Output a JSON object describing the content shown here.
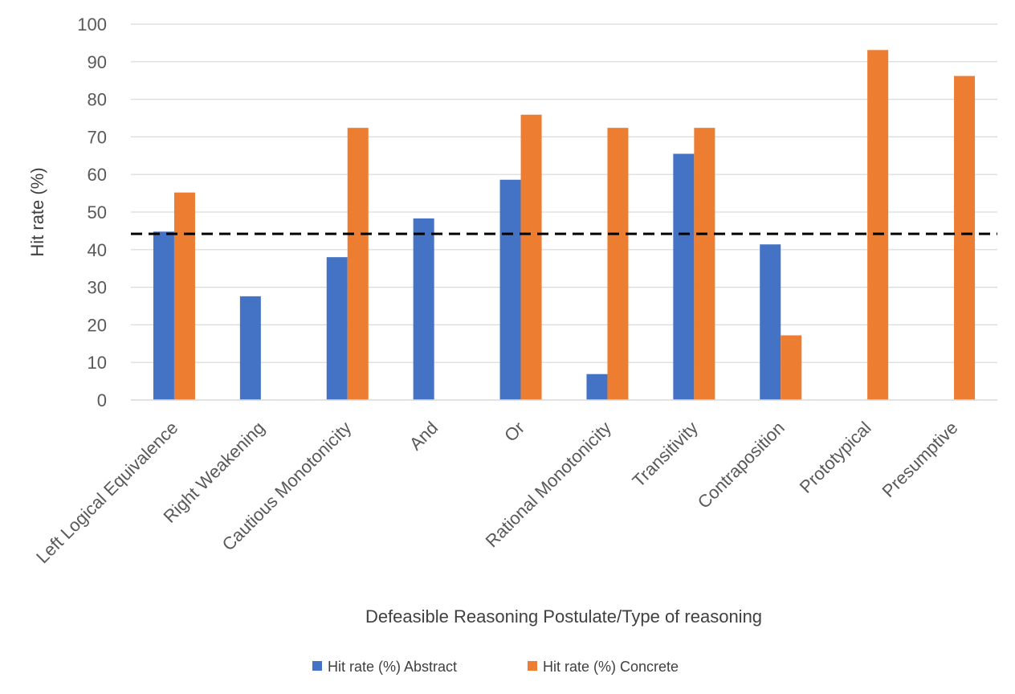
{
  "chart_data": {
    "type": "bar",
    "title": "",
    "xlabel": "Defeasible Reasoning Postulate/Type of reasoning",
    "ylabel": "Hit rate (%)",
    "ylim": [
      0,
      100
    ],
    "yticks": [
      0,
      10,
      20,
      30,
      40,
      50,
      60,
      70,
      80,
      90,
      100
    ],
    "grid": true,
    "legend_position": "bottom",
    "reference_line": {
      "y": 44.2,
      "style": "dashed",
      "color": "#000000"
    },
    "categories": [
      "Left Logical Equivalence",
      "Right Weakening",
      "Cautious Monotonicity",
      "And",
      "Or",
      "Rational Monotonicity",
      "Transitivity",
      "Contraposition",
      "Prototypical",
      "Presumptive"
    ],
    "series": [
      {
        "name": "Hit rate (%) Abstract",
        "color": "#4472C4",
        "values": [
          44.8,
          27.6,
          38.0,
          48.3,
          58.6,
          6.9,
          65.5,
          41.4,
          null,
          null
        ]
      },
      {
        "name": "Hit rate (%) Concrete",
        "color": "#ED7D31",
        "values": [
          55.2,
          null,
          72.4,
          null,
          75.9,
          72.4,
          72.4,
          17.2,
          93.1,
          86.2
        ]
      }
    ]
  }
}
